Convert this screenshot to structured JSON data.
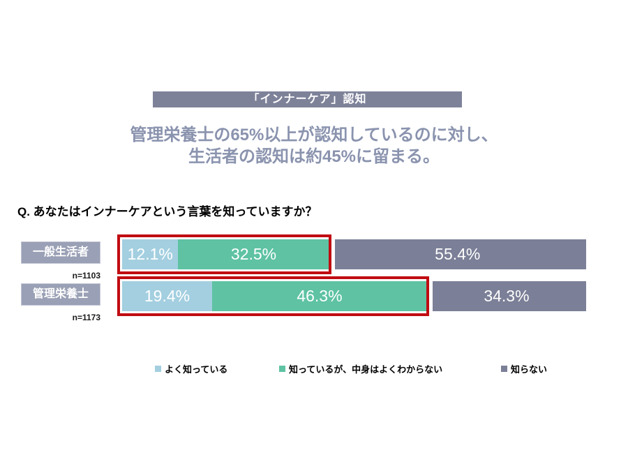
{
  "page": {
    "background": "#ffffff"
  },
  "banner": {
    "title": "「インナーケア」認知",
    "bg": "#7e8299",
    "text_color": "#ffffff"
  },
  "subtitle": {
    "line1": "管理栄養士の65%以上が認知しているのに対し、",
    "line2": "生活者の認知は約45%に留まる。",
    "color": "#8a93ae"
  },
  "question": {
    "text": "Q. あなたはインナーケアという言葉を知っていますか？"
  },
  "highlight": {
    "color": "#c00c12"
  },
  "chart_data": {
    "type": "bar",
    "orientation": "horizontal",
    "stacked": true,
    "title": "「インナーケア」認知",
    "xlabel": "",
    "ylabel": "",
    "xlim": [
      0,
      100
    ],
    "grid": false,
    "legend_position": "bottom",
    "categories": [
      "一般生活者",
      "管理栄養士"
    ],
    "sample_sizes": [
      "n=1103",
      "n=1173"
    ],
    "category_badge_bg": "#9aa0b5",
    "series": [
      {
        "name": "よく知っている",
        "color": "#a3cfe0",
        "values": [
          12.1,
          19.4
        ],
        "labels": [
          "12.1%",
          "19.4%"
        ]
      },
      {
        "name": "知っているが、中身はよくわからない",
        "color": "#5ec2a3",
        "values": [
          32.5,
          46.3
        ],
        "labels": [
          "32.5%",
          "46.3%"
        ]
      },
      {
        "name": "知らない",
        "color": "#7b7f97",
        "values": [
          55.4,
          34.3
        ],
        "labels": [
          "55.4%",
          "34.3%"
        ]
      }
    ],
    "annotations": [
      {
        "row": 0,
        "highlighted_segments": [
          0,
          1
        ],
        "style": "red-box"
      },
      {
        "row": 1,
        "highlighted_segments": [
          0,
          1
        ],
        "style": "red-box"
      }
    ]
  }
}
